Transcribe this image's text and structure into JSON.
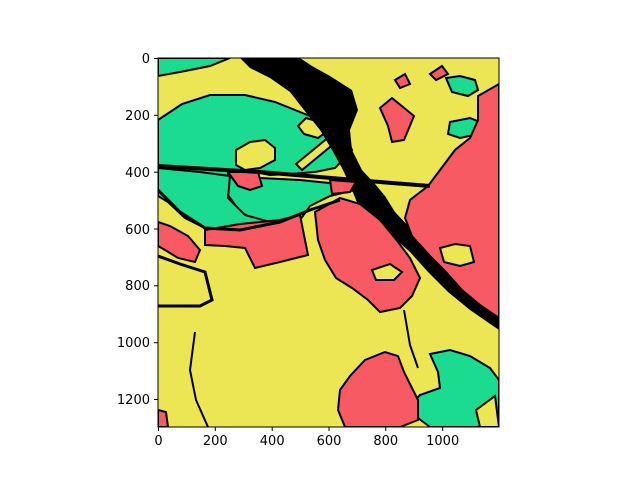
{
  "figure": {
    "type": "image",
    "x_ticks": [
      "0",
      "200",
      "400",
      "600",
      "800",
      "1000"
    ],
    "y_ticks": [
      "0",
      "200",
      "400",
      "600",
      "800",
      "1000",
      "1200"
    ],
    "x_range": [
      0,
      1200
    ],
    "y_range": [
      1300,
      0
    ],
    "grid": false
  },
  "colors": {
    "yellow": "#ECE655",
    "green": "#1ADB8F",
    "red": "#F85A64",
    "black": "#000000",
    "background": "#ffffff"
  },
  "legend": {
    "classes": [
      {
        "name": "yellow",
        "color": "#ECE655"
      },
      {
        "name": "green",
        "color": "#1ADB8F"
      },
      {
        "name": "red",
        "color": "#F85A64"
      },
      {
        "name": "black",
        "color": "#000000"
      }
    ]
  }
}
